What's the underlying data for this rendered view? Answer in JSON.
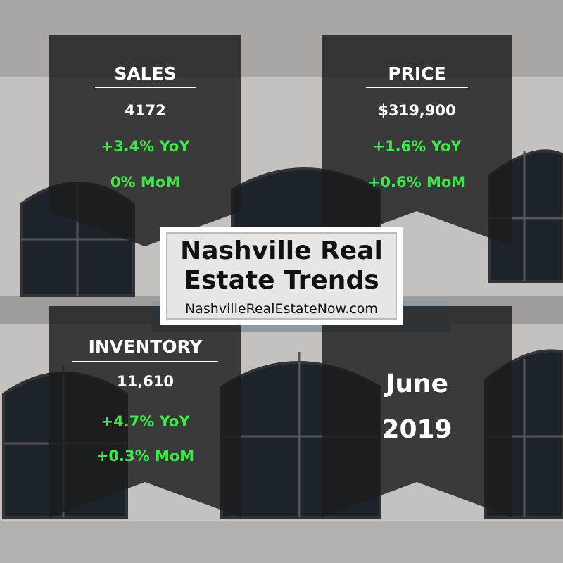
{
  "title_lines": [
    "Nashville Real",
    "Estate Trends"
  ],
  "website": "NashvilleRealEstateNow.com",
  "panels": [
    {
      "label": "SALES",
      "value": "4172",
      "yoy": "+3.4% YoY",
      "mom": "0% MoM"
    },
    {
      "label": "PRICE",
      "value": "$319,900",
      "yoy": "+1.6% YoY",
      "mom": "+0.6% MoM"
    },
    {
      "label": "INVENTORY",
      "value": "11,610",
      "yoy": "+4.7% YoY",
      "mom": "+0.3% MoM"
    }
  ],
  "date": {
    "month": "June",
    "year": "2019"
  }
}
